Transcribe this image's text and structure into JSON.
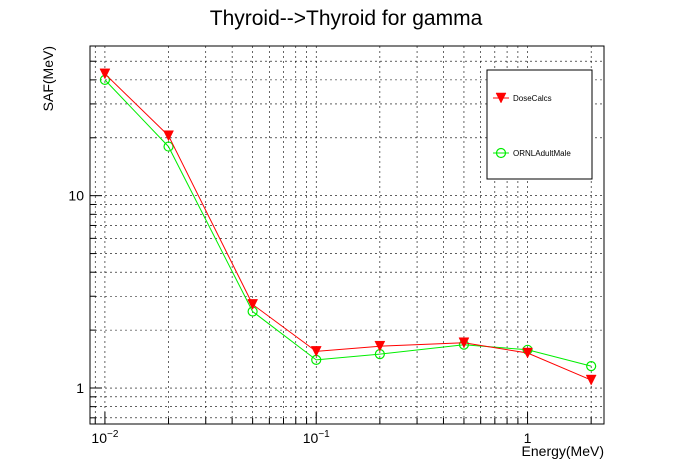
{
  "chart_data": {
    "type": "line",
    "title": "Thyroid-->Thyroid for gamma",
    "xlabel": "Energy(MeV)",
    "ylabel": "SAF(MeV)",
    "x_scale": "log",
    "y_scale": "log",
    "xlim": [
      0.0085,
      2.3
    ],
    "ylim": [
      0.65,
      60
    ],
    "grid": true,
    "x_major_ticks": [
      {
        "value": 0.01,
        "base": "10",
        "exp": "−2"
      },
      {
        "value": 0.1,
        "base": "10",
        "exp": "−1"
      },
      {
        "value": 1,
        "base": "1",
        "exp": ""
      }
    ],
    "y_major_ticks": [
      {
        "value": 1,
        "label": "1"
      },
      {
        "value": 10,
        "label": "10"
      }
    ],
    "legend": {
      "position": "top-right"
    },
    "series": [
      {
        "name": "DoseCalcs",
        "color": "#ff0000",
        "marker": "triangle-down",
        "x": [
          0.01,
          0.02,
          0.05,
          0.1,
          0.2,
          0.5,
          1,
          2
        ],
        "y": [
          43.0,
          20.5,
          2.72,
          1.55,
          1.65,
          1.72,
          1.52,
          1.1
        ]
      },
      {
        "name": "ORNLAdultMale",
        "color": "#00ee00",
        "marker": "open-circle",
        "x": [
          0.01,
          0.02,
          0.05,
          0.1,
          0.2,
          0.5,
          1,
          2
        ],
        "y": [
          40.0,
          18.0,
          2.5,
          1.4,
          1.5,
          1.68,
          1.58,
          1.3
        ]
      }
    ]
  }
}
